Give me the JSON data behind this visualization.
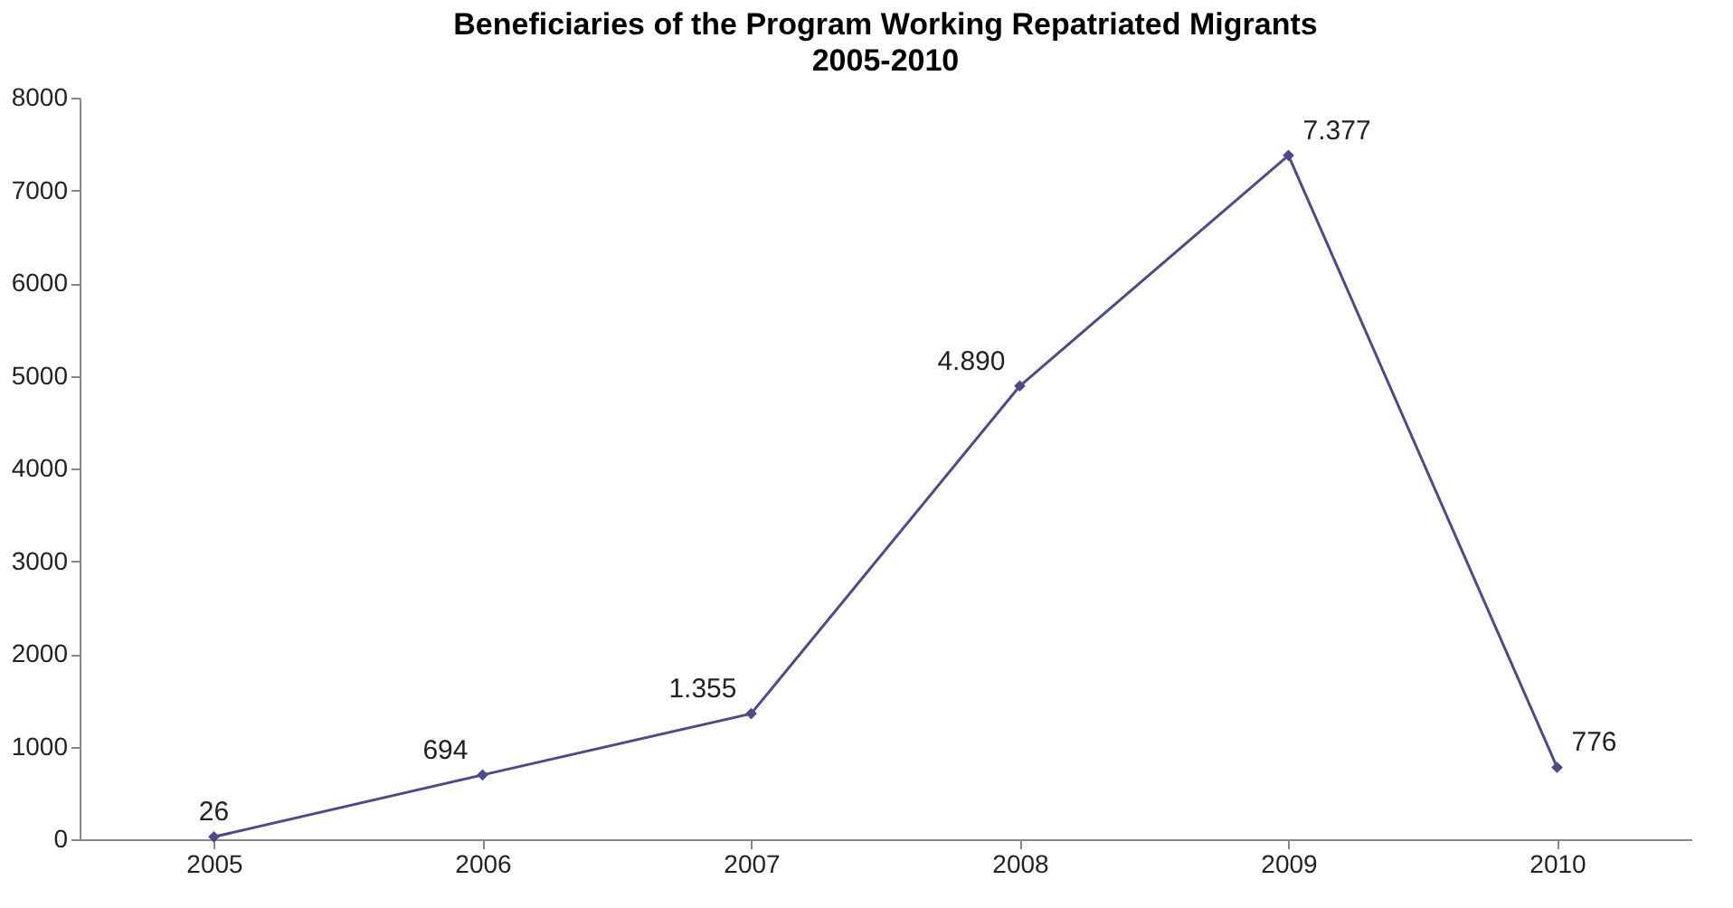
{
  "chart_data": {
    "type": "line",
    "title": "Beneficiaries of the Program Working Repatriated Migrants",
    "subtitle": "2005-2010",
    "categories": [
      "2005",
      "2006",
      "2007",
      "2008",
      "2009",
      "2010"
    ],
    "values": [
      26,
      694,
      1355,
      4890,
      7377,
      776
    ],
    "value_labels": [
      "26",
      "694",
      "1.355",
      "4.890",
      "7.377",
      "776"
    ],
    "color": "#4b4a8c",
    "marker": "diamond",
    "line_style": "solid",
    "ylim": [
      0,
      8000
    ],
    "yticks": [
      0,
      1000,
      2000,
      3000,
      4000,
      5000,
      6000,
      7000,
      8000
    ],
    "grid": false
  }
}
